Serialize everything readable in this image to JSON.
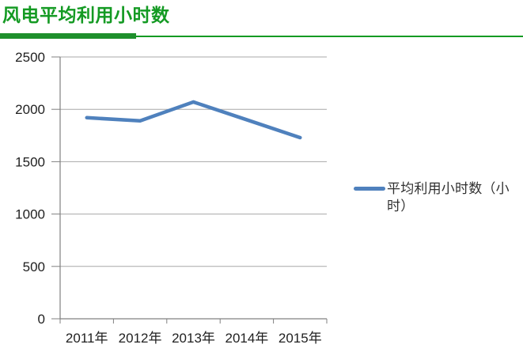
{
  "header": {
    "title": "风电平均利用小时数"
  },
  "chart_data": {
    "type": "line",
    "categories": [
      "2011年",
      "2012年",
      "2013年",
      "2014年",
      "2015年"
    ],
    "series": [
      {
        "name": "平均利用小时数（小时）",
        "values": [
          1920,
          1890,
          2070,
          1900,
          1730
        ]
      }
    ],
    "title": "风电平均利用小时数",
    "xlabel": "",
    "ylabel": "",
    "ylim": [
      0,
      2500
    ],
    "yticks": [
      0,
      500,
      1000,
      1500,
      2000,
      2500
    ],
    "grid": true,
    "legend_position": "right"
  },
  "colors": {
    "title_green": "#149A23",
    "line_blue": "#4F81BD",
    "gridline_gray": "#A8A8A8",
    "axis_gray": "#808080",
    "tick_label": "#1F1F1F"
  }
}
